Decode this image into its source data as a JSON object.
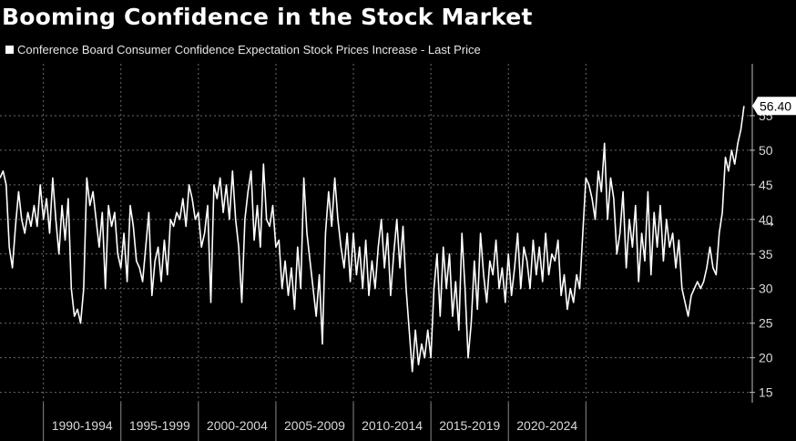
{
  "chart_data": {
    "type": "line",
    "title": "Booming Confidence in the Stock Market",
    "series": [
      {
        "name": "Conference Board Consumer Confidence Expectation Stock Prices Increase - Last Price",
        "color": "#ffffff",
        "points": [
          [
            1987.0,
            46
          ],
          [
            1987.2,
            47
          ],
          [
            1987.4,
            45
          ],
          [
            1987.6,
            36
          ],
          [
            1987.8,
            33
          ],
          [
            1988.0,
            39
          ],
          [
            1988.2,
            44
          ],
          [
            1988.4,
            40
          ],
          [
            1988.6,
            38
          ],
          [
            1988.8,
            41
          ],
          [
            1989.0,
            39
          ],
          [
            1989.2,
            42
          ],
          [
            1989.4,
            39
          ],
          [
            1989.6,
            45
          ],
          [
            1989.8,
            40
          ],
          [
            1990.0,
            43
          ],
          [
            1990.2,
            38
          ],
          [
            1990.4,
            46
          ],
          [
            1990.6,
            40
          ],
          [
            1990.8,
            35
          ],
          [
            1991.0,
            42
          ],
          [
            1991.2,
            37
          ],
          [
            1991.4,
            43
          ],
          [
            1991.6,
            30
          ],
          [
            1991.8,
            26
          ],
          [
            1992.0,
            27
          ],
          [
            1992.2,
            25
          ],
          [
            1992.4,
            30
          ],
          [
            1992.6,
            46
          ],
          [
            1992.8,
            42
          ],
          [
            1993.0,
            44
          ],
          [
            1993.2,
            40
          ],
          [
            1993.4,
            36
          ],
          [
            1993.6,
            41
          ],
          [
            1993.8,
            30
          ],
          [
            1994.0,
            42
          ],
          [
            1994.2,
            39
          ],
          [
            1994.4,
            41
          ],
          [
            1994.6,
            35
          ],
          [
            1994.8,
            33
          ],
          [
            1995.0,
            38
          ],
          [
            1995.2,
            31
          ],
          [
            1995.4,
            42
          ],
          [
            1995.6,
            39
          ],
          [
            1995.8,
            34
          ],
          [
            1996.0,
            33
          ],
          [
            1996.2,
            31
          ],
          [
            1996.4,
            36
          ],
          [
            1996.6,
            41
          ],
          [
            1996.8,
            29
          ],
          [
            1997.0,
            34
          ],
          [
            1997.2,
            36
          ],
          [
            1997.4,
            31
          ],
          [
            1997.6,
            37
          ],
          [
            1997.8,
            32
          ],
          [
            1998.0,
            40
          ],
          [
            1998.2,
            39
          ],
          [
            1998.4,
            41
          ],
          [
            1998.6,
            40
          ],
          [
            1998.8,
            43
          ],
          [
            1999.0,
            39
          ],
          [
            1999.2,
            45
          ],
          [
            1999.4,
            43
          ],
          [
            1999.6,
            40
          ],
          [
            1999.8,
            41
          ],
          [
            2000.0,
            36
          ],
          [
            2000.2,
            38
          ],
          [
            2000.4,
            42
          ],
          [
            2000.6,
            28
          ],
          [
            2000.8,
            45
          ],
          [
            2001.0,
            43
          ],
          [
            2001.2,
            46
          ],
          [
            2001.4,
            41
          ],
          [
            2001.6,
            45
          ],
          [
            2001.8,
            40
          ],
          [
            2002.0,
            47
          ],
          [
            2002.2,
            40
          ],
          [
            2002.4,
            36
          ],
          [
            2002.6,
            28
          ],
          [
            2002.8,
            40
          ],
          [
            2003.0,
            44
          ],
          [
            2003.2,
            47
          ],
          [
            2003.4,
            37
          ],
          [
            2003.6,
            42
          ],
          [
            2003.8,
            36
          ],
          [
            2004.0,
            48
          ],
          [
            2004.2,
            40
          ],
          [
            2004.4,
            39
          ],
          [
            2004.6,
            42
          ],
          [
            2004.8,
            36
          ],
          [
            2005.0,
            37
          ],
          [
            2005.2,
            30
          ],
          [
            2005.4,
            34
          ],
          [
            2005.6,
            29
          ],
          [
            2005.8,
            33
          ],
          [
            2006.0,
            27
          ],
          [
            2006.2,
            36
          ],
          [
            2006.4,
            30
          ],
          [
            2006.6,
            46
          ],
          [
            2006.8,
            38
          ],
          [
            2007.0,
            34
          ],
          [
            2007.2,
            30
          ],
          [
            2007.4,
            26
          ],
          [
            2007.6,
            32
          ],
          [
            2007.8,
            22
          ],
          [
            2008.0,
            38
          ],
          [
            2008.2,
            44
          ],
          [
            2008.4,
            39
          ],
          [
            2008.6,
            46
          ],
          [
            2008.8,
            40
          ],
          [
            2009.0,
            36
          ],
          [
            2009.2,
            33
          ],
          [
            2009.4,
            38
          ],
          [
            2009.6,
            31
          ],
          [
            2009.8,
            38
          ],
          [
            2010.0,
            32
          ],
          [
            2010.2,
            36
          ],
          [
            2010.4,
            30
          ],
          [
            2010.6,
            37
          ],
          [
            2010.8,
            29
          ],
          [
            2011.0,
            34
          ],
          [
            2011.2,
            30
          ],
          [
            2011.4,
            36
          ],
          [
            2011.6,
            40
          ],
          [
            2011.8,
            33
          ],
          [
            2012.0,
            38
          ],
          [
            2012.2,
            29
          ],
          [
            2012.4,
            35
          ],
          [
            2012.6,
            40
          ],
          [
            2012.8,
            33
          ],
          [
            2013.0,
            39
          ],
          [
            2013.2,
            30
          ],
          [
            2013.4,
            24
          ],
          [
            2013.6,
            18
          ],
          [
            2013.8,
            24
          ],
          [
            2014.0,
            19
          ],
          [
            2014.2,
            22
          ],
          [
            2014.4,
            20
          ],
          [
            2014.6,
            24
          ],
          [
            2014.8,
            20
          ],
          [
            2015.0,
            30
          ],
          [
            2015.2,
            35
          ],
          [
            2015.4,
            26
          ],
          [
            2015.6,
            36
          ],
          [
            2015.8,
            30
          ],
          [
            2016.0,
            35
          ],
          [
            2016.2,
            26
          ],
          [
            2016.4,
            31
          ],
          [
            2016.6,
            24
          ],
          [
            2016.8,
            38
          ],
          [
            2017.0,
            30
          ],
          [
            2017.2,
            20
          ],
          [
            2017.4,
            25
          ],
          [
            2017.6,
            34
          ],
          [
            2017.8,
            27
          ],
          [
            2018.0,
            38
          ],
          [
            2018.2,
            32
          ],
          [
            2018.4,
            28
          ],
          [
            2018.6,
            34
          ],
          [
            2018.8,
            32
          ],
          [
            2019.0,
            37
          ],
          [
            2019.2,
            30
          ],
          [
            2019.4,
            33
          ],
          [
            2019.6,
            28
          ],
          [
            2019.8,
            35
          ],
          [
            2020.0,
            29
          ],
          [
            2020.2,
            33
          ],
          [
            2020.4,
            38
          ],
          [
            2020.6,
            30
          ],
          [
            2020.8,
            36
          ],
          [
            2021.0,
            34
          ],
          [
            2021.2,
            30
          ],
          [
            2021.4,
            37
          ],
          [
            2021.6,
            32
          ],
          [
            2021.8,
            36
          ],
          [
            2022.0,
            31
          ],
          [
            2022.2,
            38
          ],
          [
            2022.4,
            32
          ],
          [
            2022.6,
            35
          ],
          [
            2022.8,
            34
          ],
          [
            2023.0,
            37
          ],
          [
            2023.2,
            29
          ],
          [
            2023.4,
            32
          ],
          [
            2023.6,
            27
          ],
          [
            2023.8,
            30
          ],
          [
            2024.0,
            28
          ],
          [
            2024.2,
            32
          ],
          [
            2024.4,
            30
          ],
          [
            2024.6,
            38
          ],
          [
            2024.8,
            46
          ],
          [
            2025.0,
            45
          ],
          [
            2025.2,
            43
          ],
          [
            2025.4,
            40
          ],
          [
            2025.6,
            47
          ],
          [
            2025.8,
            44
          ],
          [
            2026.0,
            51
          ],
          [
            2026.2,
            40
          ],
          [
            2026.4,
            46
          ],
          [
            2026.6,
            43
          ],
          [
            2026.8,
            35
          ],
          [
            2027.0,
            38
          ],
          [
            2027.2,
            44
          ],
          [
            2027.4,
            33
          ],
          [
            2027.6,
            40
          ],
          [
            2027.8,
            36
          ],
          [
            2028.0,
            42
          ],
          [
            2028.2,
            31
          ],
          [
            2028.4,
            38
          ],
          [
            2028.6,
            34
          ],
          [
            2028.8,
            44
          ],
          [
            2029.0,
            32
          ],
          [
            2029.2,
            41
          ],
          [
            2029.4,
            36
          ],
          [
            2029.6,
            42
          ],
          [
            2029.8,
            34
          ],
          [
            2030.0,
            40
          ],
          [
            2030.2,
            36
          ],
          [
            2030.4,
            38
          ],
          [
            2030.6,
            33
          ],
          [
            2030.8,
            37
          ],
          [
            2031.0,
            30
          ],
          [
            2031.2,
            28
          ],
          [
            2031.4,
            26
          ],
          [
            2031.6,
            29
          ],
          [
            2031.8,
            30
          ],
          [
            2032.0,
            31
          ],
          [
            2032.2,
            30
          ],
          [
            2032.4,
            31
          ],
          [
            2032.6,
            33
          ],
          [
            2032.8,
            36
          ],
          [
            2033.0,
            33
          ],
          [
            2033.2,
            32
          ],
          [
            2033.4,
            38
          ],
          [
            2033.6,
            41
          ],
          [
            2033.8,
            49
          ],
          [
            2034.0,
            47
          ],
          [
            2034.2,
            50
          ],
          [
            2034.4,
            48
          ],
          [
            2034.6,
            51
          ],
          [
            2034.8,
            53
          ],
          [
            2035.0,
            56.4
          ]
        ]
      }
    ],
    "last_value_label": "56.40",
    "x_tick_labels": [
      "1990-1994",
      "1995-1999",
      "2000-2004",
      "2005-2009",
      "2010-2014",
      "2015-2019",
      "2020-2024"
    ],
    "y_ticks": [
      15,
      20,
      25,
      30,
      35,
      40,
      45,
      50,
      55
    ],
    "ylim": [
      13.5,
      62.5
    ],
    "xlim": [
      1987.0,
      2035.3
    ],
    "grid": true,
    "y_axis_position": "right",
    "background": "#000000",
    "line_color": "#ffffff"
  }
}
